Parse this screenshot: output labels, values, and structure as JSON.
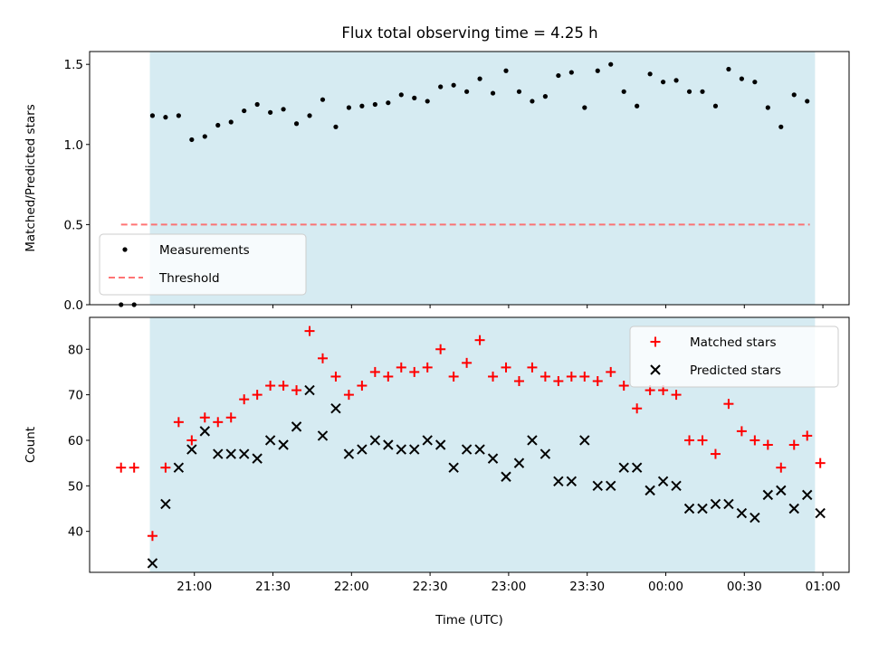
{
  "title": "Flux total observing time = 4.25 h",
  "chart_data": [
    {
      "type": "scatter",
      "panel": "top",
      "ylabel": "Matched/Predicted stars",
      "ylim": [
        0,
        1.58
      ],
      "yticks": [
        0.0,
        0.5,
        1.0,
        1.5
      ],
      "ytick_labels": [
        "0.0",
        "0.5",
        "1.0",
        "1.5"
      ],
      "x_range_minutes": [
        1220,
        1510
      ],
      "shaded_span_minutes": [
        1243,
        1497
      ],
      "shade_color": "#add8e6",
      "legend_position": "lower-left",
      "series": [
        {
          "name": "Measurements",
          "marker": "dot",
          "color": "#000000",
          "x": [
            1232,
            1237,
            1244,
            1249,
            1254,
            1259,
            1264,
            1269,
            1274,
            1279,
            1284,
            1289,
            1294,
            1299,
            1304,
            1309,
            1314,
            1319,
            1324,
            1329,
            1334,
            1339,
            1344,
            1349,
            1354,
            1359,
            1364,
            1369,
            1374,
            1379,
            1384,
            1389,
            1394,
            1399,
            1404,
            1409,
            1414,
            1419,
            1424,
            1429,
            1434,
            1439,
            1444,
            1449,
            1454,
            1459,
            1464,
            1469,
            1474,
            1479,
            1484,
            1489,
            1494
          ],
          "y": [
            0.0,
            0.0,
            1.18,
            1.17,
            1.18,
            1.03,
            1.05,
            1.12,
            1.14,
            1.21,
            1.25,
            1.2,
            1.22,
            1.13,
            1.18,
            1.28,
            1.11,
            1.23,
            1.24,
            1.25,
            1.26,
            1.31,
            1.29,
            1.27,
            1.36,
            1.37,
            1.33,
            1.41,
            1.32,
            1.46,
            1.33,
            1.27,
            1.3,
            1.43,
            1.45,
            1.23,
            1.46,
            1.5,
            1.33,
            1.24,
            1.44,
            1.39,
            1.4,
            1.33,
            1.33,
            1.24,
            1.47,
            1.41,
            1.39,
            1.23,
            1.11,
            1.31,
            1.27
          ]
        },
        {
          "name": "Threshold",
          "marker": "dashed-line",
          "color": "#ff6666",
          "x": [
            1232,
            1495
          ],
          "y": [
            0.5,
            0.5
          ]
        }
      ]
    },
    {
      "type": "scatter",
      "panel": "bottom",
      "xlabel": "Time (UTC)",
      "ylabel": "Count",
      "ylim": [
        31,
        87
      ],
      "yticks": [
        40,
        50,
        60,
        70,
        80
      ],
      "ytick_labels": [
        "40",
        "50",
        "60",
        "70",
        "80"
      ],
      "x_range_minutes": [
        1220,
        1510
      ],
      "xticks_minutes": [
        1260,
        1290,
        1320,
        1350,
        1380,
        1410,
        1440,
        1470,
        1500
      ],
      "xtick_labels": [
        "21:00",
        "21:30",
        "22:00",
        "22:30",
        "23:00",
        "23:30",
        "00:00",
        "00:30",
        "01:00"
      ],
      "shaded_span_minutes": [
        1243,
        1497
      ],
      "shade_color": "#add8e6",
      "legend_position": "upper-right",
      "series": [
        {
          "name": "Matched stars",
          "marker": "plus",
          "color": "#ff0000",
          "x": [
            1232,
            1237,
            1244,
            1249,
            1254,
            1259,
            1264,
            1269,
            1274,
            1279,
            1284,
            1289,
            1294,
            1299,
            1304,
            1309,
            1314,
            1319,
            1324,
            1329,
            1334,
            1339,
            1344,
            1349,
            1354,
            1359,
            1364,
            1369,
            1374,
            1379,
            1384,
            1389,
            1394,
            1399,
            1404,
            1409,
            1414,
            1419,
            1424,
            1429,
            1434,
            1439,
            1444,
            1449,
            1454,
            1459,
            1464,
            1469,
            1474,
            1479,
            1484,
            1489,
            1494,
            1499
          ],
          "y": [
            54,
            54,
            39,
            54,
            64,
            60,
            65,
            64,
            65,
            69,
            70,
            72,
            72,
            71,
            84,
            78,
            74,
            70,
            72,
            75,
            74,
            76,
            75,
            76,
            80,
            74,
            77,
            82,
            74,
            76,
            73,
            76,
            74,
            73,
            74,
            74,
            73,
            75,
            72,
            67,
            71,
            71,
            70,
            60,
            60,
            57,
            68,
            62,
            60,
            59,
            54,
            59,
            61,
            55
          ]
        },
        {
          "name": "Predicted stars",
          "marker": "x",
          "color": "#000000",
          "x": [
            1244,
            1249,
            1254,
            1259,
            1264,
            1269,
            1274,
            1279,
            1284,
            1289,
            1294,
            1299,
            1304,
            1309,
            1314,
            1319,
            1324,
            1329,
            1334,
            1339,
            1344,
            1349,
            1354,
            1359,
            1364,
            1369,
            1374,
            1379,
            1384,
            1389,
            1394,
            1399,
            1404,
            1409,
            1414,
            1419,
            1424,
            1429,
            1434,
            1439,
            1444,
            1449,
            1454,
            1459,
            1464,
            1469,
            1474,
            1479,
            1484,
            1489,
            1494,
            1499
          ],
          "y": [
            33,
            46,
            54,
            58,
            62,
            57,
            57,
            57,
            56,
            60,
            59,
            63,
            71,
            61,
            67,
            57,
            58,
            60,
            59,
            58,
            58,
            60,
            59,
            54,
            58,
            58,
            56,
            52,
            55,
            60,
            57,
            51,
            51,
            60,
            50,
            50,
            54,
            54,
            49,
            51,
            50,
            45,
            45,
            46,
            46,
            44,
            43,
            48,
            49,
            45,
            48,
            44
          ]
        }
      ]
    }
  ]
}
